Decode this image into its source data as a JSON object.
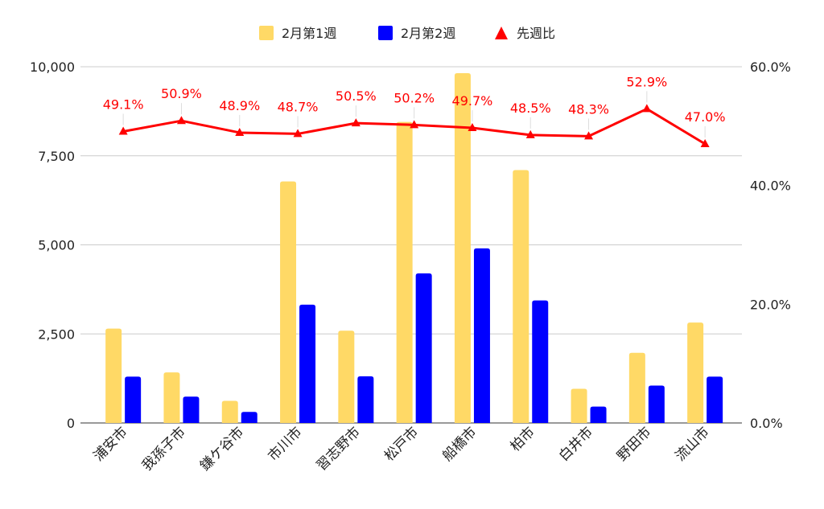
{
  "chart_data": {
    "type": "bar",
    "categories": [
      "浦安市",
      "我孫子市",
      "鎌ケ谷市",
      "市川市",
      "習志野市",
      "松戸市",
      "船橋市",
      "柏市",
      "白井市",
      "野田市",
      "流山市"
    ],
    "series": [
      {
        "name": "2月第1週",
        "type": "bar",
        "axis": "left",
        "color": "#ffd966",
        "values": [
          2650,
          1420,
          620,
          6780,
          2590,
          8450,
          9820,
          7100,
          960,
          1970,
          2820
        ]
      },
      {
        "name": "2月第2週",
        "type": "bar",
        "axis": "left",
        "color": "#0000ff",
        "values": [
          1300,
          740,
          310,
          3320,
          1310,
          4200,
          4900,
          3440,
          460,
          1050,
          1300
        ]
      },
      {
        "name": "先週比",
        "type": "line",
        "axis": "right",
        "color": "#ff0000",
        "marker": "triangle",
        "values": [
          49.1,
          50.9,
          48.9,
          48.7,
          50.5,
          50.2,
          49.7,
          48.5,
          48.3,
          52.9,
          47.0
        ],
        "labels": [
          "49.1%",
          "50.9%",
          "48.9%",
          "48.7%",
          "50.5%",
          "50.2%",
          "49.7%",
          "48.5%",
          "48.3%",
          "52.9%",
          "47.0%"
        ]
      }
    ],
    "y_left": {
      "ylim": [
        0,
        10000
      ],
      "ticks": [
        0,
        2500,
        5000,
        7500,
        10000
      ],
      "tick_labels": [
        "0",
        "2,500",
        "5,000",
        "7,500",
        "10,000"
      ]
    },
    "y_right": {
      "ylim": [
        0,
        60
      ],
      "ticks": [
        0,
        20,
        40,
        60
      ],
      "tick_labels": [
        "0.0%",
        "20.0%",
        "40.0%",
        "60.0%"
      ]
    },
    "grid": true,
    "legend_position": "top-center",
    "title": "",
    "xlabel": "",
    "ylabel": ""
  }
}
